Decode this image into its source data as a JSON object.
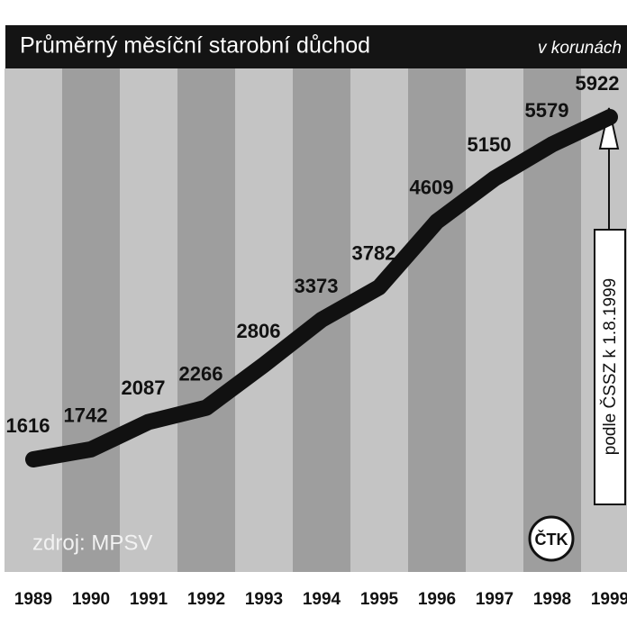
{
  "chart_data": {
    "type": "line",
    "title": "Průměrný měsíční starobní důchod",
    "subtitle": "v korunách",
    "categories": [
      "1989",
      "1990",
      "1991",
      "1992",
      "1993",
      "1994",
      "1995",
      "1996",
      "1997",
      "1998",
      "1999"
    ],
    "values": [
      1616,
      1742,
      2087,
      2266,
      2806,
      3373,
      3782,
      4609,
      5150,
      5579,
      5922
    ],
    "color": "#111111",
    "annotation": "podle ČSSZ k 1.8.1999",
    "source": "zdroj: MPSV",
    "logo": "ČTK"
  }
}
